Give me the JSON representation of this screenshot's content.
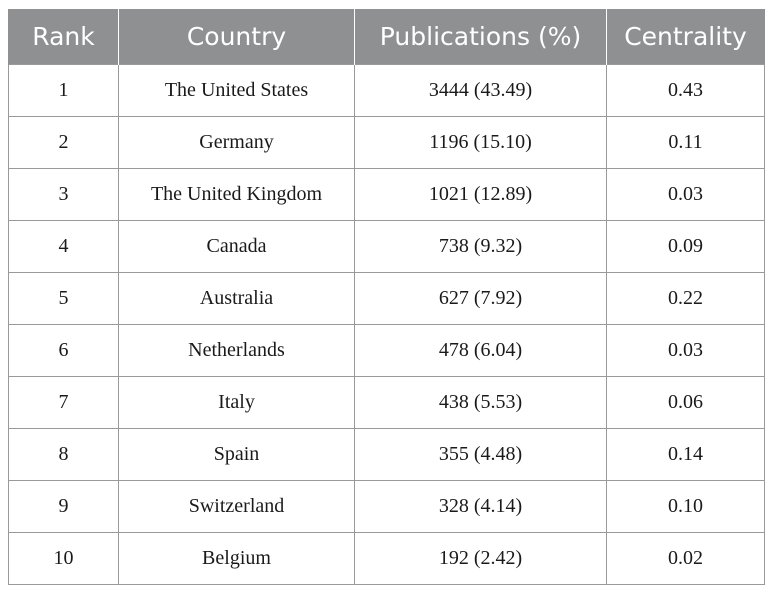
{
  "table": {
    "headers": [
      "Rank",
      "Country",
      "Publications (%)",
      "Centrality"
    ],
    "rows": [
      [
        "1",
        "The United States",
        "3444 (43.49)",
        "0.43"
      ],
      [
        "2",
        "Germany",
        "1196 (15.10)",
        "0.11"
      ],
      [
        "3",
        "The United Kingdom",
        "1021 (12.89)",
        "0.03"
      ],
      [
        "4",
        "Canada",
        "738 (9.32)",
        "0.09"
      ],
      [
        "5",
        "Australia",
        "627 (7.92)",
        "0.22"
      ],
      [
        "6",
        "Netherlands",
        "478 (6.04)",
        "0.03"
      ],
      [
        "7",
        "Italy",
        "438 (5.53)",
        "0.06"
      ],
      [
        "8",
        "Spain",
        "355 (4.48)",
        "0.14"
      ],
      [
        "9",
        "Switzerland",
        "328 (4.14)",
        "0.10"
      ],
      [
        "10",
        "Belgium",
        "192 (2.42)",
        "0.02"
      ]
    ]
  },
  "colors": {
    "header_background": "#8f9092",
    "header_text": "#ffffff",
    "grid_line": "#9a9a9a"
  }
}
